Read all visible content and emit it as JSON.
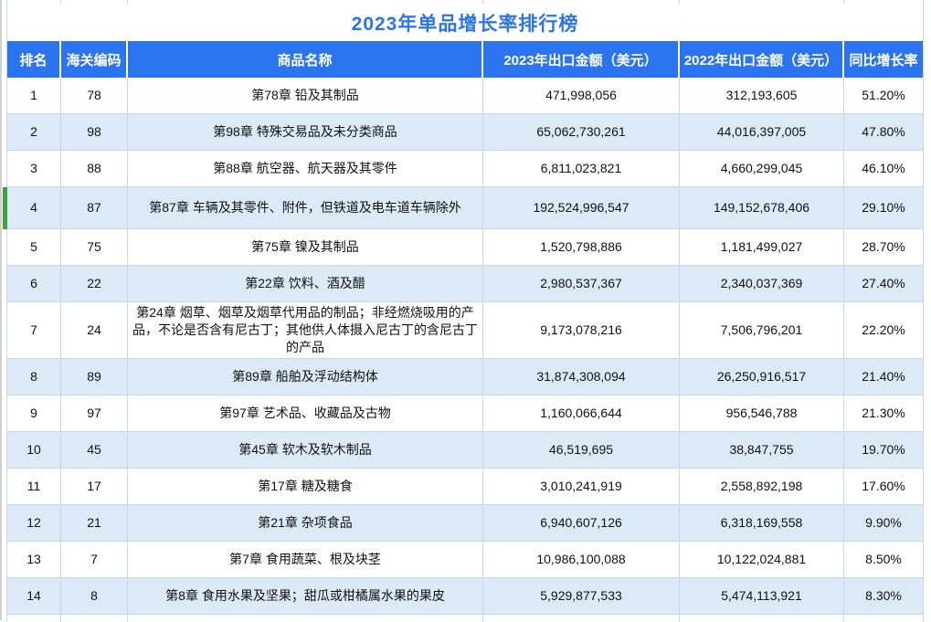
{
  "title": "2023年单品增长率排行榜",
  "selected_row_rank": "4",
  "colors": {
    "header_blue": "#2b74f0",
    "title_blue": "#2b74f0",
    "banded_row_blue": "#dce9f6",
    "grid_line": "#c9d7ea",
    "selected_marker_green": "#3fa044"
  },
  "table": {
    "columns": [
      {
        "label": "排名"
      },
      {
        "label": "海关编码"
      },
      {
        "label": "商品名称"
      },
      {
        "label": "2023年出口金额（美元）"
      },
      {
        "label": "2022年出口金额（美元）"
      },
      {
        "label": "同比增长率"
      }
    ],
    "rows": [
      {
        "rank": "1",
        "code": "78",
        "name": "第78章  铅及其制品",
        "amount2023": "471,998,056",
        "amount2022": "312,193,605",
        "growth": "51.20%"
      },
      {
        "rank": "2",
        "code": "98",
        "name": "第98章  特殊交易品及未分类商品",
        "amount2023": "65,062,730,261",
        "amount2022": "44,016,397,005",
        "growth": "47.80%"
      },
      {
        "rank": "3",
        "code": "88",
        "name": "第88章  航空器、航天器及其零件",
        "amount2023": "6,811,023,821",
        "amount2022": "4,660,299,045",
        "growth": "46.10%"
      },
      {
        "rank": "4",
        "code": "87",
        "name": "第87章  车辆及其零件、附件，但铁道及电车道车辆除外",
        "amount2023": "192,524,996,547",
        "amount2022": "149,152,678,406",
        "growth": "29.10%"
      },
      {
        "rank": "5",
        "code": "75",
        "name": "第75章  镍及其制品",
        "amount2023": "1,520,798,886",
        "amount2022": "1,181,499,027",
        "growth": "28.70%"
      },
      {
        "rank": "6",
        "code": "22",
        "name": "第22章  饮料、酒及醋",
        "amount2023": "2,980,537,367",
        "amount2022": "2,340,037,369",
        "growth": "27.40%"
      },
      {
        "rank": "7",
        "code": "24",
        "name": "第24章  烟草、烟草及烟草代用品的制品；非经燃烧吸用的产品，不论是否含有尼古丁；其他供人体摄入尼古丁的含尼古丁的产品",
        "amount2023": "9,173,078,216",
        "amount2022": "7,506,796,201",
        "growth": "22.20%"
      },
      {
        "rank": "8",
        "code": "89",
        "name": "第89章  船舶及浮动结构体",
        "amount2023": "31,874,308,094",
        "amount2022": "26,250,916,517",
        "growth": "21.40%"
      },
      {
        "rank": "9",
        "code": "97",
        "name": "第97章  艺术品、收藏品及古物",
        "amount2023": "1,160,066,644",
        "amount2022": "956,546,788",
        "growth": "21.30%"
      },
      {
        "rank": "10",
        "code": "45",
        "name": "第45章  软木及软木制品",
        "amount2023": "46,519,695",
        "amount2022": "38,847,755",
        "growth": "19.70%"
      },
      {
        "rank": "11",
        "code": "17",
        "name": "第17章  糖及糖食",
        "amount2023": "3,010,241,919",
        "amount2022": "2,558,892,198",
        "growth": "17.60%"
      },
      {
        "rank": "12",
        "code": "21",
        "name": "第21章  杂项食品",
        "amount2023": "6,940,607,126",
        "amount2022": "6,318,169,558",
        "growth": "9.90%"
      },
      {
        "rank": "13",
        "code": "7",
        "name": "第7章  食用蔬菜、根及块茎",
        "amount2023": "10,986,100,088",
        "amount2022": "10,122,024,881",
        "growth": "8.50%"
      },
      {
        "rank": "14",
        "code": "8",
        "name": "第8章  食用水果及坚果；甜瓜或柑橘属水果的果皮",
        "amount2023": "5,929,877,533",
        "amount2022": "5,474,113,921",
        "growth": "8.30%"
      }
    ]
  }
}
